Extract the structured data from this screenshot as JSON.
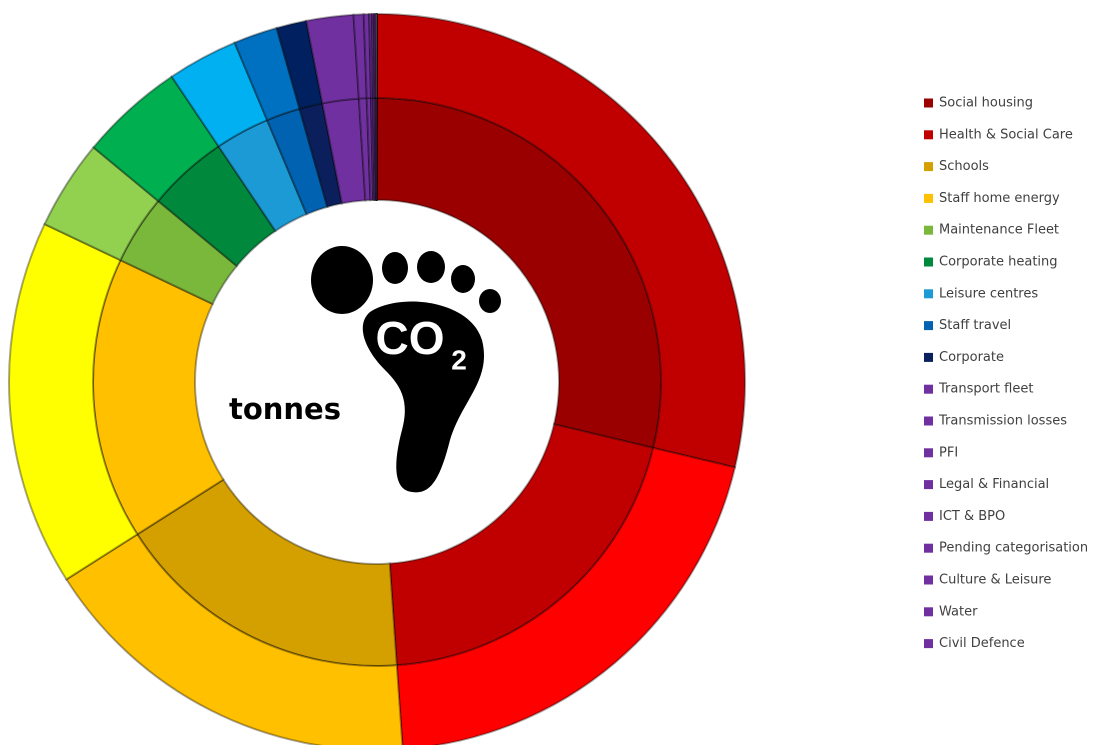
{
  "chart_data": {
    "type": "double-donut",
    "center_label": "tonnes",
    "icon_label": "CO",
    "icon_subscript": "2",
    "categories": [
      "Social housing",
      "Health & Social Care",
      "Schools",
      "Staff home energy",
      "Maintenance Fleet",
      "Corporate heating",
      "Leisure centres",
      "Staff travel",
      "Corporate",
      "Transport fleet",
      "Transmission losses",
      "PFI",
      "Legal & Financial",
      "ICT & BPO",
      "Pending categorisation",
      "Culture & Leisure",
      "Water",
      "Civil Defence"
    ],
    "values": [
      9737,
      6835,
      5797,
      5446,
      1337,
      1552,
      1050,
      653,
      445,
      700,
      150,
      80,
      40,
      30,
      20,
      15,
      5,
      5
    ],
    "percents": [
      29,
      20,
      17,
      16,
      4,
      5,
      3,
      2,
      1,
      null,
      null,
      null,
      null,
      null,
      null,
      null,
      null,
      null
    ],
    "value_labels": [
      "29%",
      "20%",
      "17%",
      "16%",
      "4%",
      "5%",
      "3%",
      "2%",
      "1%",
      null,
      null,
      null,
      null,
      null,
      null,
      null,
      null,
      null
    ],
    "colors": [
      "#9b0000",
      "#c00000",
      "#d4a000",
      "#ffc000",
      "#7ab83c",
      "#00883c",
      "#1b9ad6",
      "#0062b0",
      "#0a1f5c",
      "#7030a0",
      "#7030a0",
      "#7030a0",
      "#7030a0",
      "#7030a0",
      "#7030a0",
      "#7030a0",
      "#7030a0",
      "#7030a0"
    ],
    "outer_colors": [
      "#c00000",
      "#ff0000",
      "#ffc000",
      "#ffff00",
      "#92d050",
      "#00b050",
      "#00b0f0",
      "#0070c0",
      "#002060",
      "#7030a0",
      "#7030a0",
      "#7030a0",
      "#7030a0",
      "#7030a0",
      "#7030a0",
      "#8a4ab0",
      "#4aa0c0",
      "#70c0d0"
    ],
    "legend": "right"
  }
}
